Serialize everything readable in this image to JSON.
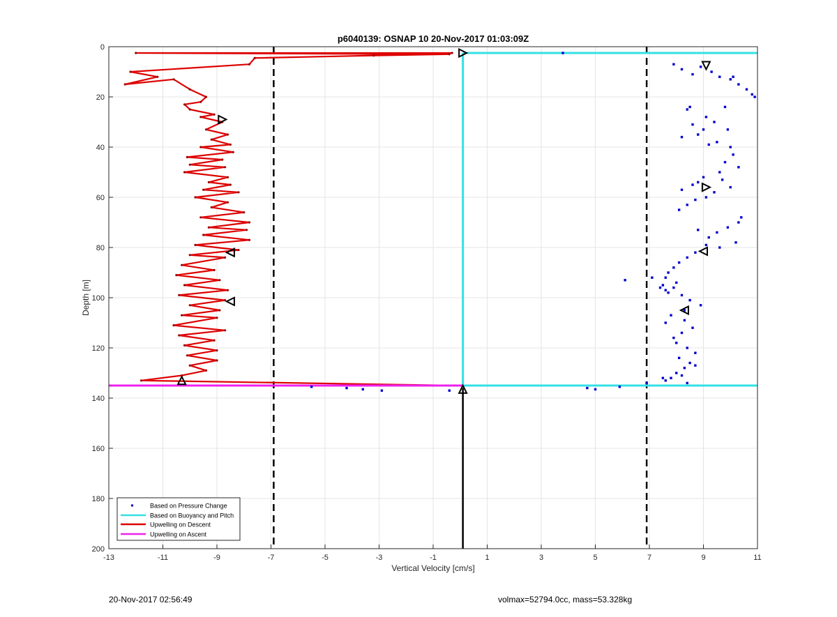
{
  "footer": {
    "date_text": "20-Nov-2017 02:56:49",
    "info_text": "volmax=52794.0cc, mass=53.328kg"
  },
  "chart_data": {
    "type": "line",
    "title": "p6040139: OSNAP 10 20-Nov-2017 01:03:09Z",
    "xlabel": "Vertical Velocity [cm/s]",
    "ylabel": "Depth [m]",
    "xlim": [
      -13,
      11
    ],
    "ylim": [
      0,
      200
    ],
    "y_reversed": true,
    "xticks": [
      -13,
      -11,
      -9,
      -7,
      -5,
      -3,
      -1,
      1,
      3,
      5,
      7,
      9,
      11
    ],
    "yticks": [
      0,
      20,
      40,
      60,
      80,
      100,
      120,
      140,
      160,
      180,
      200
    ],
    "grid": true,
    "legend_position": "bottom-left",
    "vertical_dashed_lines_x": [
      -6.9,
      6.9
    ],
    "vertical_solid_line": {
      "x": 0.1,
      "y_from": 136,
      "y_to": 200
    },
    "series": [
      {
        "name": "Based on Pressure Change",
        "style": "dots",
        "color": "#0000cc",
        "x": [
          3.8,
          7.9,
          8.2,
          8.6,
          8.9,
          9.3,
          9.6,
          10.0,
          10.1,
          10.3,
          10.6,
          10.9,
          10.8,
          8.5,
          8.4,
          9.1,
          9.8,
          9.4,
          9.0,
          8.8,
          8.6,
          8.2,
          9.9,
          9.5,
          9.2,
          10.0,
          10.1,
          9.8,
          10.3,
          9.6,
          9.0,
          8.6,
          8.2,
          8.8,
          9.7,
          10.0,
          9.4,
          9.1,
          8.7,
          8.4,
          8.1,
          10.4,
          10.3,
          9.9,
          9.5,
          9.2,
          8.8,
          10.2,
          9.6,
          9.1,
          8.7,
          8.4,
          8.1,
          7.9,
          7.7,
          7.6,
          7.5,
          7.6,
          8.0,
          7.9,
          7.7,
          6.1,
          7.1,
          7.4,
          8.2,
          8.5,
          8.9,
          8.3,
          7.8,
          7.6,
          8.3,
          8.6,
          8.2,
          7.9,
          8.0,
          8.4,
          8.7,
          8.1,
          8.5,
          8.3,
          8.7,
          8.0,
          7.8,
          7.6,
          8.2,
          8.4,
          7.5,
          6.9,
          4.7,
          5.0,
          5.9,
          6.9,
          -5.5,
          -4.2,
          -3.6,
          -2.9,
          -0.4
        ],
        "y": [
          2.5,
          7,
          9,
          11,
          8,
          10,
          12,
          13,
          12,
          15,
          17,
          20,
          19,
          24,
          25,
          28,
          24,
          30,
          33,
          35,
          31,
          36,
          33,
          38,
          39,
          40,
          43,
          46,
          48,
          50,
          52,
          55,
          57,
          54,
          53,
          56,
          58,
          60,
          61,
          63,
          65,
          68,
          70,
          72,
          74,
          76,
          73,
          78,
          80,
          79,
          82,
          84,
          86,
          88,
          90,
          92,
          95,
          97,
          94,
          96,
          98,
          93,
          92,
          96,
          99,
          101,
          103,
          105,
          107,
          110,
          109,
          112,
          114,
          116,
          118,
          120,
          122,
          124,
          126,
          128,
          127,
          130,
          132,
          133,
          131,
          134,
          132,
          134,
          136,
          136.5,
          135.5,
          134,
          135.5,
          136,
          136.5,
          137,
          137
        ]
      },
      {
        "name": "Based on Buoyancy and Pitch",
        "style": "line",
        "color": "#33e0e6",
        "x": [
          0.1,
          11,
          11,
          0.1,
          0.1
        ],
        "y": [
          2.5,
          2.5,
          2.5,
          2.5,
          135
        ],
        "extra_horizontal_at": [
          2.5,
          135
        ]
      },
      {
        "name": "Upwelling on Descent",
        "style": "line-dots",
        "color": "#dd0000",
        "x": [
          -0.3,
          -12.0,
          -0.4,
          -3.2,
          -7.6,
          -7.8,
          -12.2,
          -11.2,
          -12.4,
          -10.6,
          -10.0,
          -9.4,
          -9.6,
          -10.2,
          -10.0,
          -9.1,
          -9.6,
          -8.8,
          -9.4,
          -8.6,
          -9.2,
          -8.5,
          -9.6,
          -8.4,
          -10.1,
          -8.8,
          -10.0,
          -8.7,
          -10.2,
          -8.6,
          -9.3,
          -8.5,
          -9.5,
          -8.2,
          -9.8,
          -8.6,
          -9.2,
          -8.0,
          -9.6,
          -7.8,
          -9.3,
          -7.9,
          -9.5,
          -7.8,
          -9.8,
          -8.2,
          -10.0,
          -8.7,
          -10.3,
          -9.1,
          -10.5,
          -8.9,
          -10.2,
          -8.6,
          -10.4,
          -8.7,
          -10.0,
          -8.9,
          -10.3,
          -9.0,
          -10.6,
          -8.7,
          -10.4,
          -9.1,
          -10.2,
          -9.0,
          -10.1,
          -9.0,
          -10.0,
          -9.4,
          -10.3,
          -11.8,
          -0.2
        ],
        "y": [
          2.5,
          2.5,
          3,
          3.5,
          4.5,
          7,
          10,
          12,
          15,
          13,
          17,
          20,
          22,
          23,
          25,
          27,
          28,
          30,
          33,
          35,
          37,
          39,
          40,
          42,
          44,
          45,
          47,
          48,
          50,
          52,
          54,
          55,
          57,
          58,
          60,
          62,
          64,
          66,
          68,
          70,
          72,
          73,
          75,
          77,
          79,
          81,
          83,
          84,
          87,
          89,
          91,
          93,
          95,
          97,
          99,
          101,
          103,
          105,
          107,
          108,
          111,
          113,
          115,
          117,
          119,
          121,
          123,
          125,
          127,
          129,
          131,
          133,
          135
        ]
      },
      {
        "name": "Upwelling on Ascent",
        "style": "line",
        "color": "#ee22ee",
        "x": [
          -13,
          0.1
        ],
        "y": [
          135,
          135
        ]
      }
    ],
    "markers": [
      {
        "x": 0.1,
        "y": 2.5,
        "shape": "triangle-right"
      },
      {
        "x": 9.1,
        "y": 7.5,
        "shape": "triangle-down"
      },
      {
        "x": -8.8,
        "y": 29,
        "shape": "triangle-right"
      },
      {
        "x": 9.1,
        "y": 56,
        "shape": "triangle-right"
      },
      {
        "x": -8.5,
        "y": 82,
        "shape": "triangle-left"
      },
      {
        "x": 9.0,
        "y": 81.5,
        "shape": "triangle-left"
      },
      {
        "x": -8.5,
        "y": 101.5,
        "shape": "triangle-left"
      },
      {
        "x": 8.3,
        "y": 105,
        "shape": "triangle-left"
      },
      {
        "x": -10.3,
        "y": 133,
        "shape": "triangle-up"
      },
      {
        "x": 0.1,
        "y": 136.5,
        "shape": "triangle-up"
      }
    ]
  }
}
